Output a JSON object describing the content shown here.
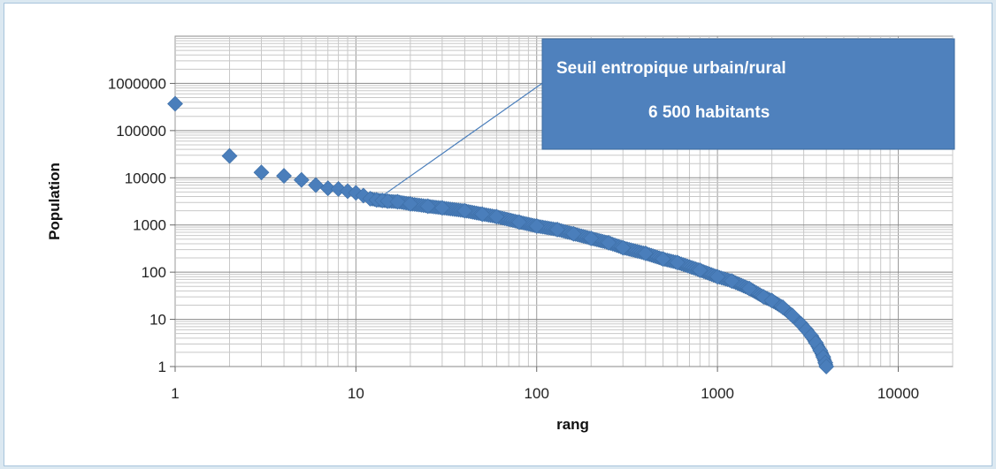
{
  "chart_data": {
    "type": "scatter",
    "xlabel": "rang",
    "ylabel": "Population",
    "x_scale": "log",
    "y_scale": "log",
    "xlim": [
      1,
      20000
    ],
    "ylim": [
      1,
      10000000
    ],
    "x_ticks": [
      "1",
      "10",
      "100",
      "1000",
      "10000"
    ],
    "y_ticks": [
      "1",
      "10",
      "100",
      "1000",
      "10000",
      "100000",
      "1000000"
    ],
    "grid": true,
    "legend": "none",
    "marker_color": "#4a7ebb",
    "annotation_color": "#4f81bd",
    "annotation": {
      "line1": "Seuil entropique urbain/rural",
      "line2": "6 500 habitants",
      "points_to": {
        "x": 14,
        "y": 3400
      }
    },
    "series": [
      {
        "points": [
          [
            1,
            370000
          ],
          [
            2,
            29000
          ],
          [
            3,
            13000
          ],
          [
            4,
            11000
          ],
          [
            5,
            9000
          ],
          [
            6,
            7000
          ],
          [
            7,
            6000
          ],
          [
            8,
            5800
          ],
          [
            9,
            5200
          ],
          [
            10,
            4800
          ],
          [
            11,
            4200
          ],
          [
            12,
            3600
          ],
          [
            13,
            3400
          ],
          [
            14,
            3300
          ],
          [
            15,
            3200
          ],
          [
            17,
            3100
          ],
          [
            20,
            2800
          ],
          [
            25,
            2500
          ],
          [
            30,
            2300
          ],
          [
            40,
            2000
          ],
          [
            50,
            1700
          ],
          [
            60,
            1500
          ],
          [
            80,
            1150
          ],
          [
            100,
            950
          ],
          [
            130,
            800
          ],
          [
            160,
            650
          ],
          [
            200,
            520
          ],
          [
            250,
            420
          ],
          [
            300,
            330
          ],
          [
            400,
            250
          ],
          [
            500,
            190
          ],
          [
            600,
            160
          ],
          [
            800,
            110
          ],
          [
            1000,
            80
          ],
          [
            1200,
            65
          ],
          [
            1500,
            45
          ],
          [
            1800,
            30
          ],
          [
            2000,
            25
          ],
          [
            2300,
            18
          ],
          [
            2600,
            12
          ],
          [
            2900,
            8
          ],
          [
            3100,
            6
          ],
          [
            3300,
            4.5
          ],
          [
            3500,
            3.2
          ],
          [
            3700,
            2.2
          ],
          [
            3850,
            1.6
          ],
          [
            3950,
            1.2
          ],
          [
            4000,
            1
          ]
        ]
      }
    ]
  }
}
